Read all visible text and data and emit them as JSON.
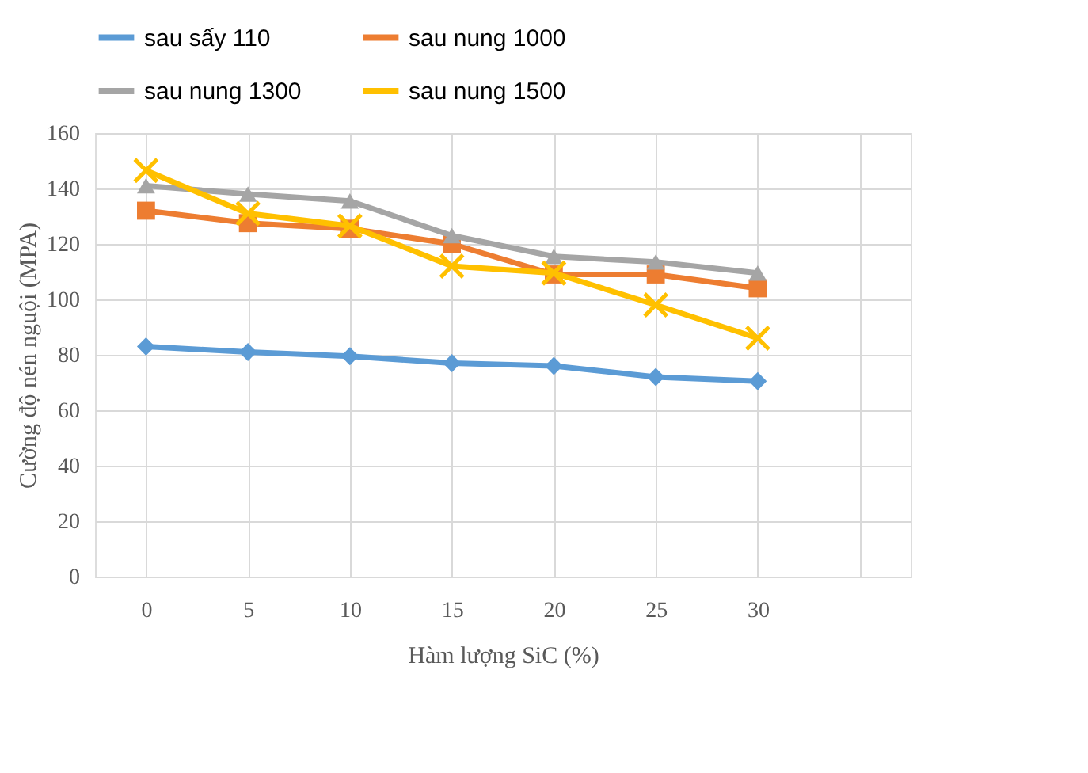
{
  "chart_data": {
    "type": "line",
    "xlabel": "Hàm lượng SiC (%)",
    "ylabel": "Cường độ nén nguội (MPA)",
    "categories": [
      "0",
      "5",
      "10",
      "15",
      "20",
      "25",
      "30",
      null
    ],
    "series": [
      {
        "name": "sau sấy 110",
        "color": "#5b9bd5",
        "marker": "diamond",
        "values": [
          83,
          81,
          79.5,
          77,
          76,
          72,
          70.5,
          null
        ]
      },
      {
        "name": "sau nung 1000",
        "color": "#ed7d31",
        "marker": "square",
        "values": [
          132,
          127.5,
          125.5,
          120,
          109,
          109,
          104,
          null
        ]
      },
      {
        "name": "sau nung 1300",
        "color": "#a5a5a5",
        "marker": "triangle",
        "values": [
          141,
          138,
          135.5,
          123,
          115.5,
          113.5,
          109.5,
          null
        ]
      },
      {
        "name": "sau nung 1500",
        "color": "#ffc000",
        "marker": "cross",
        "values": [
          146.5,
          131,
          126.5,
          112,
          109.5,
          98,
          86,
          null
        ]
      }
    ],
    "ylim": [
      0,
      160
    ],
    "yticks": [
      0,
      20,
      40,
      60,
      80,
      100,
      120,
      140,
      160
    ],
    "grid": true,
    "legend": "top"
  }
}
